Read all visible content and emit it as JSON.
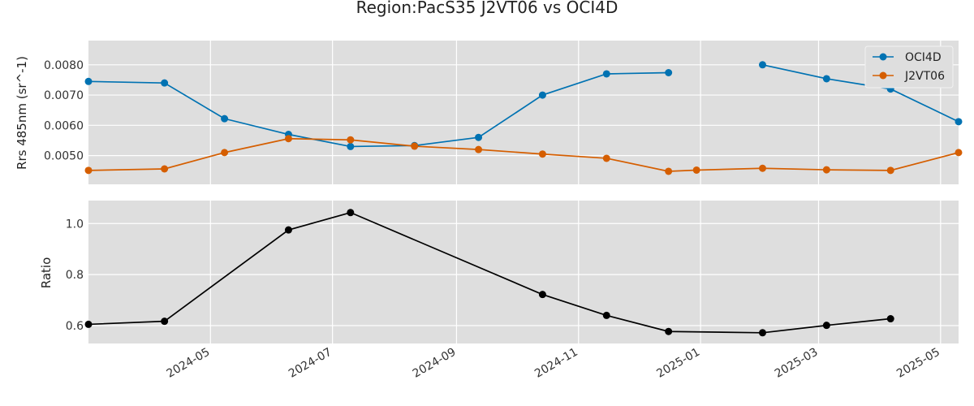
{
  "title": "Region:PacS35 J2VT06 vs OCI4D",
  "colors": {
    "panel_bg": "#dedede",
    "grid": "#ffffff",
    "oci4d": "#0072b2",
    "j2vt06": "#d55e00",
    "ratio": "#000000"
  },
  "chart_data": [
    {
      "type": "line",
      "ylabel": "Rrs 485nm (sr^-1)",
      "xlim": [
        "2024-03-01",
        "2025-05-10"
      ],
      "ylim": [
        0.00405,
        0.0088
      ],
      "yticks": [
        0.005,
        0.006,
        0.007,
        0.008
      ],
      "ytick_labels": [
        "0.0050",
        "0.0060",
        "0.0070",
        "0.0080"
      ],
      "grid": true,
      "legend": "top-right",
      "series": [
        {
          "name": "OCI4D",
          "color": "#0072b2",
          "x": [
            "2024-03-01",
            "2024-04-08",
            "2024-05-08",
            "2024-06-09",
            "2024-07-10",
            "2024-08-11",
            "2024-09-12",
            "2024-10-14",
            "2024-11-15",
            "2024-12-16",
            null,
            "2025-02-01",
            "2025-03-05",
            "2025-04-06",
            "2025-05-10"
          ],
          "y": [
            0.00745,
            0.0074,
            0.00622,
            0.0057,
            0.0053,
            0.00533,
            0.0056,
            0.007,
            0.0077,
            0.00774,
            null,
            0.008,
            0.00754,
            0.0072,
            0.00612
          ]
        },
        {
          "name": "J2VT06",
          "color": "#d55e00",
          "x": [
            "2024-03-01",
            "2024-04-08",
            "2024-05-08",
            "2024-06-09",
            "2024-07-10",
            "2024-08-11",
            "2024-09-12",
            "2024-10-14",
            "2024-11-15",
            "2024-12-16",
            "2024-12-30",
            "2025-02-01",
            "2025-03-05",
            "2025-04-06",
            "2025-05-10"
          ],
          "y": [
            0.00451,
            0.00456,
            0.0051,
            0.00556,
            0.00552,
            0.00531,
            0.0052,
            0.00505,
            0.00491,
            0.00448,
            0.00452,
            0.00458,
            0.00453,
            0.00451,
            0.0051
          ]
        }
      ]
    },
    {
      "type": "line",
      "ylabel": "Ratio",
      "xlim": [
        "2024-03-01",
        "2025-05-10"
      ],
      "ylim": [
        0.53,
        1.09
      ],
      "yticks": [
        0.6,
        0.8,
        1.0
      ],
      "ytick_labels": [
        "0.6",
        "0.8",
        "1.0"
      ],
      "xticks": [
        "2024-05",
        "2024-07",
        "2024-09",
        "2024-11",
        "2025-01",
        "2025-03",
        "2025-05"
      ],
      "xtick_dates": [
        "2024-05-01",
        "2024-07-01",
        "2024-09-01",
        "2024-11-01",
        "2025-01-01",
        "2025-03-01",
        "2025-05-01"
      ],
      "grid": true,
      "series": [
        {
          "color": "#000000",
          "x": [
            "2024-03-01",
            "2024-04-08",
            "2024-06-09",
            "2024-07-10",
            "2024-10-14",
            "2024-11-15",
            "2024-12-16",
            "2025-02-01",
            "2025-03-05",
            "2025-04-06"
          ],
          "y": [
            0.605,
            0.617,
            0.975,
            1.043,
            0.722,
            0.64,
            0.577,
            0.572,
            0.601,
            0.627
          ]
        }
      ]
    }
  ]
}
